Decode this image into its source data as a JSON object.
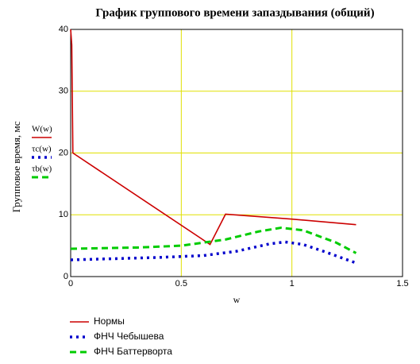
{
  "chart_data": {
    "type": "line",
    "title": "График группового времени запаздывания (общий)",
    "x_label": "w",
    "y_label": "Групповое время, мс",
    "xlim": [
      0,
      1.5
    ],
    "ylim": [
      0,
      40
    ],
    "xticks": [
      0,
      0.5,
      1,
      1.5
    ],
    "yticks": [
      0,
      10,
      20,
      30,
      40
    ],
    "grid": true,
    "series": [
      {
        "name": "Нормы",
        "trace_label": "W(w)",
        "color": "#cc0000",
        "style": "solid",
        "x": [
          0,
          0.005,
          0.01,
          0.63,
          0.7,
          1.0,
          1.29
        ],
        "values": [
          40,
          37.5,
          20,
          5.2,
          10.1,
          9.3,
          8.4
        ]
      },
      {
        "name": "ФНЧ Чебышева",
        "trace_label": "τc(w)",
        "color": "#0000cc",
        "style": "dotted",
        "x": [
          0,
          0.2,
          0.4,
          0.6,
          0.75,
          0.9,
          0.97,
          1.05,
          1.15,
          1.29
        ],
        "values": [
          2.7,
          2.9,
          3.1,
          3.4,
          4.1,
          5.3,
          5.6,
          5.2,
          4.0,
          2.2
        ]
      },
      {
        "name": "ФНЧ Баттерворта",
        "trace_label": "τb(w)",
        "color": "#00cc00",
        "style": "dashed",
        "x": [
          0,
          0.3,
          0.5,
          0.7,
          0.85,
          0.95,
          1.05,
          1.2,
          1.29
        ],
        "values": [
          4.5,
          4.7,
          5.0,
          6.0,
          7.3,
          7.9,
          7.5,
          5.5,
          3.8
        ]
      }
    ]
  }
}
